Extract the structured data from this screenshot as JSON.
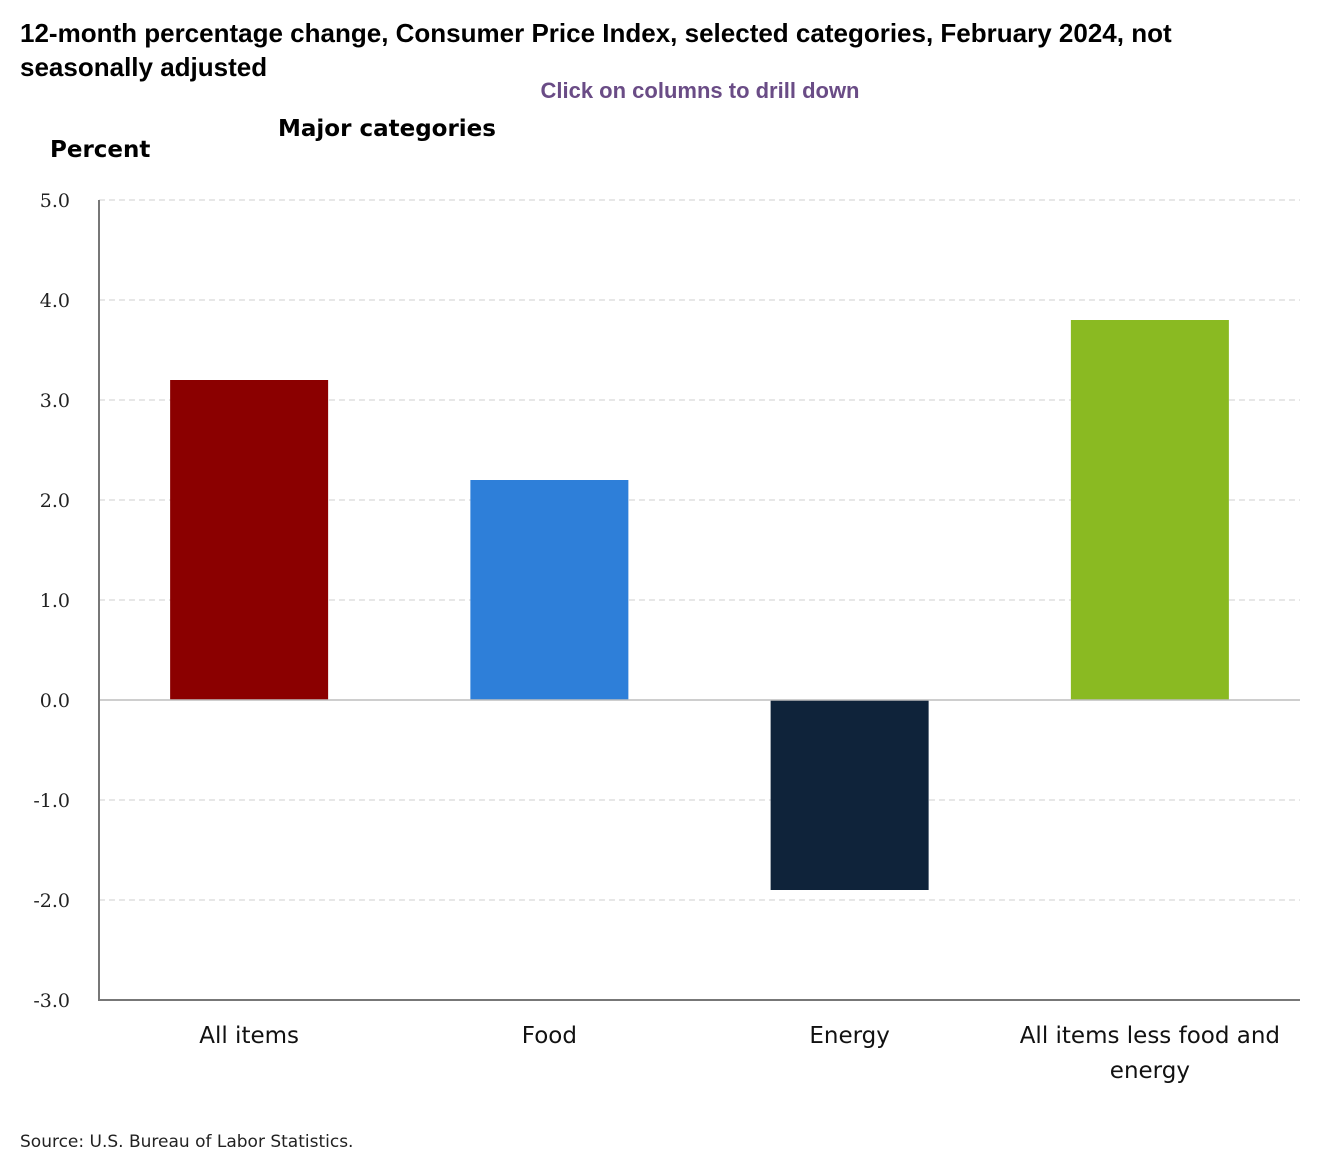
{
  "header": {
    "title": "12-month percentage change, Consumer Price Index, selected categories, February 2024, not seasonally adjusted",
    "drill_hint": "Click on columns to drill down",
    "subtitle": "Major categories"
  },
  "footer": {
    "source": "Source: U.S. Bureau of Labor Statistics."
  },
  "chart_data": {
    "type": "bar",
    "title": "12-month percentage change, Consumer Price Index, selected categories, February 2024, not seasonally adjusted",
    "subtitle": "Major categories",
    "ylabel": "Percent",
    "xlabel": "",
    "ylim": [
      -3.0,
      5.0
    ],
    "yticks": [
      "5.0",
      "4.0",
      "3.0",
      "2.0",
      "1.0",
      "0.0",
      "-1.0",
      "-2.0",
      "-3.0"
    ],
    "ytick_values": [
      5,
      4,
      3,
      2,
      1,
      0,
      -1,
      -2,
      -3
    ],
    "grid": true,
    "categories": [
      [
        "All items"
      ],
      [
        "Food"
      ],
      [
        "Energy"
      ],
      [
        "All items less food and",
        "energy"
      ]
    ],
    "values": [
      3.2,
      2.2,
      -1.9,
      3.8
    ],
    "colors": [
      "#8b0000",
      "#2e7fd9",
      "#0f233a",
      "#8aba22"
    ]
  }
}
